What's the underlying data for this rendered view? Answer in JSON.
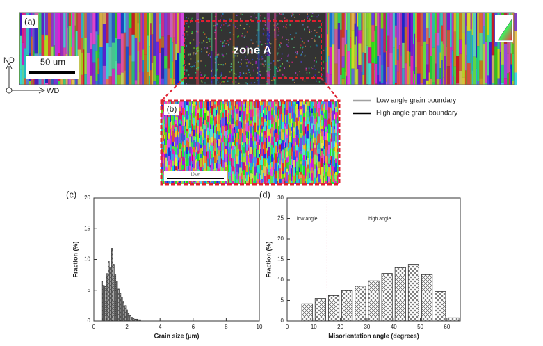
{
  "panel_a": {
    "label": "(a)",
    "zone": "zone A",
    "scale_bar": "50 um",
    "axis_nd": "ND",
    "axis_wd": "WD"
  },
  "panel_b": {
    "label": "(b)",
    "scale_bar": "10 um"
  },
  "legend": {
    "items": [
      {
        "name": "Low angle grain boundary",
        "color": "#a0a0a0"
      },
      {
        "name": "High angle grain boundary",
        "color": "#000000"
      }
    ]
  },
  "chart_data": [
    {
      "type": "histogram",
      "panel_label": "(c)",
      "x_label": "Grain size (μm)",
      "y_label": "Fraction (%)",
      "bins": [
        0.45,
        0.55,
        0.65,
        0.75,
        0.85,
        0.95,
        1.05,
        1.15,
        1.25,
        1.35,
        1.45,
        1.55,
        1.65,
        1.75,
        1.85,
        1.95,
        2.05,
        2.15,
        2.25,
        2.35,
        2.45,
        2.55,
        2.65,
        2.75,
        2.85
      ],
      "values": [
        6.5,
        5.8,
        5.6,
        7.7,
        9.7,
        8.7,
        11.8,
        9.2,
        7.5,
        6.4,
        5.2,
        4.5,
        3.9,
        3.2,
        2.5,
        1.8,
        1.3,
        0.9,
        0.6,
        0.4,
        0.3,
        0.3,
        0.2,
        0.2
      ],
      "xlim": [
        0,
        10
      ],
      "ylim": [
        0,
        20
      ],
      "xticks": [
        0,
        2,
        4,
        6,
        8,
        10
      ],
      "yticks": [
        0,
        5,
        10,
        15,
        20
      ],
      "bar_width_fraction": 0.6
    },
    {
      "type": "histogram",
      "panel_label": "(d)",
      "x_label": "Misorientation angle (degrees)",
      "y_label": "Fraction (%)",
      "bins": [
        5,
        10,
        15,
        20,
        25,
        30,
        35,
        40,
        45,
        50,
        55,
        60,
        65
      ],
      "values": [
        4.2,
        5.5,
        6.2,
        7.4,
        8.5,
        9.8,
        11.6,
        13.0,
        13.8,
        11.3,
        7.2,
        0.8
      ],
      "xlim": [
        0,
        65
      ],
      "ylim": [
        0,
        30
      ],
      "xticks": [
        0,
        10,
        20,
        30,
        40,
        50,
        60
      ],
      "yticks": [
        0,
        5,
        10,
        15,
        20,
        25,
        30
      ],
      "bar_width_fraction": 0.8,
      "threshold": 15,
      "threshold_color": "#e0304a",
      "annotations": [
        "low angle",
        "high angle"
      ]
    }
  ]
}
